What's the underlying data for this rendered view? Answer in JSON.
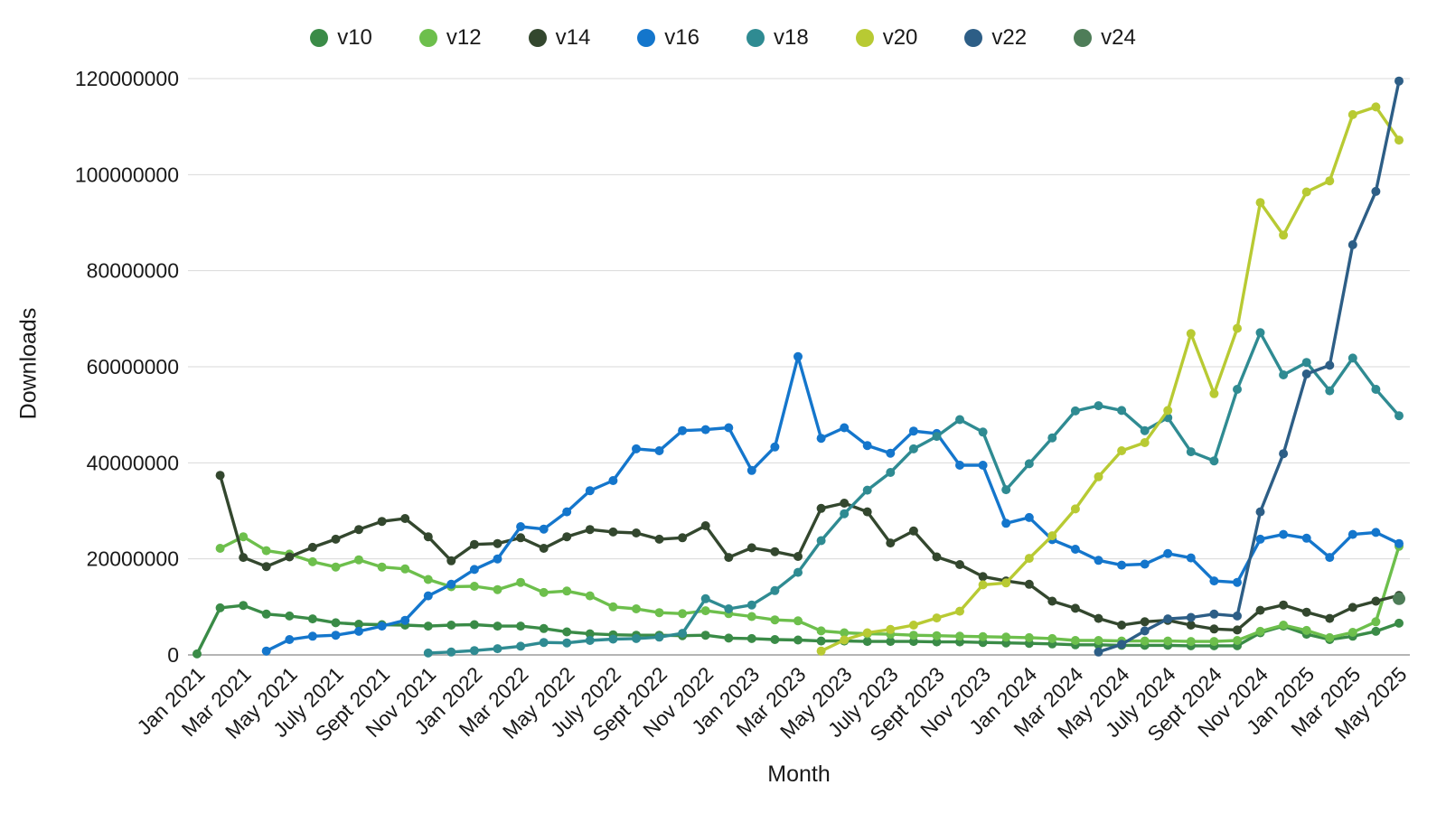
{
  "chart_data": {
    "type": "line",
    "title": "",
    "xlabel": "Month",
    "ylabel": "Downloads",
    "legend_position": "top",
    "grid": "horizontal",
    "ylim": [
      0,
      120000000
    ],
    "y_ticks": [
      0,
      20000000,
      40000000,
      60000000,
      80000000,
      100000000,
      120000000
    ],
    "x_tick_interval": 2,
    "values_unit": "millions_of_downloads",
    "months": [
      "Jan 2021",
      "Feb 2021",
      "Mar 2021",
      "Apr 2021",
      "May 2021",
      "June 2021",
      "July 2021",
      "Aug 2021",
      "Sept 2021",
      "Oct 2021",
      "Nov 2021",
      "Dec 2021",
      "Jan 2022",
      "Feb 2022",
      "Mar 2022",
      "Apr 2022",
      "May 2022",
      "June 2022",
      "July 2022",
      "Aug 2022",
      "Sept 2022",
      "Oct 2022",
      "Nov 2022",
      "Dec 2022",
      "Jan 2023",
      "Feb 2023",
      "Mar 2023",
      "Apr 2023",
      "May 2023",
      "June 2023",
      "July 2023",
      "Aug 2023",
      "Sept 2023",
      "Oct 2023",
      "Nov 2023",
      "Dec 2023",
      "Jan 2024",
      "Feb 2024",
      "Mar 2024",
      "Apr 2024",
      "May 2024",
      "June 2024",
      "July 2024",
      "Aug 2024",
      "Sept 2024",
      "Oct 2024",
      "Nov 2024",
      "Dec 2024",
      "Jan 2025",
      "Feb 2025",
      "Mar 2025",
      "Apr 2025",
      "May 2025"
    ],
    "series": [
      {
        "name": "v10",
        "color": "#3a8b47",
        "start": 0,
        "marker_radius": 5,
        "values": [
          0.2,
          9.8,
          10.3,
          8.5,
          8.1,
          7.5,
          6.7,
          6.4,
          6.3,
          6.2,
          6.0,
          6.2,
          6.3,
          6.0,
          6.0,
          5.5,
          4.8,
          4.4,
          4.2,
          4.1,
          4.1,
          4.0,
          4.1,
          3.5,
          3.4,
          3.2,
          3.1,
          2.9,
          2.9,
          2.8,
          2.8,
          2.8,
          2.7,
          2.7,
          2.6,
          2.5,
          2.4,
          2.3,
          2.1,
          2.1,
          2.0,
          2.0,
          2.0,
          1.9,
          1.9,
          1.9,
          4.6,
          6.0,
          4.3,
          3.2,
          3.9,
          4.9,
          6.6
        ]
      },
      {
        "name": "v12",
        "color": "#6dbf4c",
        "start": 1,
        "marker_radius": 5,
        "values": [
          22.2,
          24.6,
          21.7,
          21.0,
          19.4,
          18.3,
          19.8,
          18.3,
          17.9,
          15.7,
          14.2,
          14.3,
          13.6,
          15.1,
          13.0,
          13.3,
          12.3,
          10.0,
          9.6,
          8.8,
          8.6,
          9.2,
          8.6,
          8.0,
          7.3,
          7.1,
          5.0,
          4.6,
          4.4,
          4.3,
          4.1,
          4.0,
          3.9,
          3.8,
          3.7,
          3.6,
          3.4,
          3.0,
          3.0,
          2.9,
          2.9,
          2.9,
          2.8,
          2.8,
          3.0,
          4.9,
          6.2,
          5.1,
          3.6,
          4.7,
          6.9,
          22.6
        ]
      },
      {
        "name": "v14",
        "color": "#33472e",
        "start": 1,
        "marker_radius": 5,
        "values": [
          37.4,
          20.3,
          18.4,
          20.4,
          22.4,
          24.1,
          26.1,
          27.8,
          28.4,
          24.6,
          19.6,
          23.0,
          23.2,
          24.4,
          22.2,
          24.6,
          26.1,
          25.6,
          25.4,
          24.1,
          24.4,
          26.9,
          20.3,
          22.3,
          21.5,
          20.5,
          30.5,
          31.6,
          29.8,
          23.3,
          25.8,
          20.4,
          18.8,
          16.3,
          15.4,
          14.7,
          11.2,
          9.7,
          7.6,
          6.2,
          6.9,
          7.2,
          6.2,
          5.4,
          5.2,
          9.3,
          10.4,
          8.9,
          7.6,
          9.9,
          11.2,
          12.4
        ]
      },
      {
        "name": "v16",
        "color": "#1476cc",
        "start": 3,
        "marker_radius": 5,
        "values": [
          0.8,
          3.2,
          3.9,
          4.1,
          4.9,
          6.0,
          7.2,
          12.3,
          14.7,
          17.8,
          20.0,
          26.7,
          26.2,
          29.8,
          34.2,
          36.3,
          42.9,
          42.5,
          46.7,
          46.9,
          47.3,
          38.4,
          43.3,
          62.1,
          45.1,
          47.3,
          43.6,
          42.0,
          46.6,
          46.1,
          39.5,
          39.5,
          27.4,
          28.6,
          24.0,
          22.0,
          19.7,
          18.7,
          18.9,
          21.1,
          20.2,
          15.4,
          15.1,
          24.1,
          25.1,
          24.3,
          20.3,
          25.1,
          25.5,
          23.2
        ]
      },
      {
        "name": "v18",
        "color": "#2f8b92",
        "start": 10,
        "marker_radius": 5,
        "values": [
          0.4,
          0.6,
          0.9,
          1.3,
          1.8,
          2.6,
          2.5,
          3.0,
          3.3,
          3.4,
          3.7,
          4.5,
          11.7,
          9.6,
          10.4,
          13.4,
          17.2,
          23.8,
          29.4,
          34.3,
          38.0,
          42.9,
          45.5,
          49.0,
          46.4,
          34.4,
          39.8,
          45.2,
          50.8,
          51.9,
          50.9,
          46.7,
          49.4,
          42.3,
          40.4,
          55.3,
          67.1,
          58.3,
          60.9,
          55.0,
          61.8,
          55.3,
          49.8
        ]
      },
      {
        "name": "v20",
        "color": "#b8ca33",
        "start": 27,
        "marker_radius": 5,
        "values": [
          0.8,
          3.1,
          4.6,
          5.3,
          6.2,
          7.7,
          9.1,
          14.6,
          15.0,
          20.1,
          24.8,
          30.4,
          37.1,
          42.5,
          44.2,
          50.9,
          66.9,
          54.4,
          68.0,
          94.2,
          87.4,
          96.4,
          98.7,
          112.5,
          114.1,
          107.2
        ]
      },
      {
        "name": "v22",
        "color": "#2d5e86",
        "start": 39,
        "marker_radius": 5,
        "values": [
          0.6,
          2.2,
          5.0,
          7.5,
          7.8,
          8.5,
          8.1,
          29.8,
          41.9,
          58.5,
          60.3,
          85.4,
          96.5,
          119.5
        ]
      },
      {
        "name": "v24",
        "color": "#4e7d58",
        "start": 52,
        "marker_radius": 7,
        "values": [
          11.7
        ]
      }
    ]
  }
}
